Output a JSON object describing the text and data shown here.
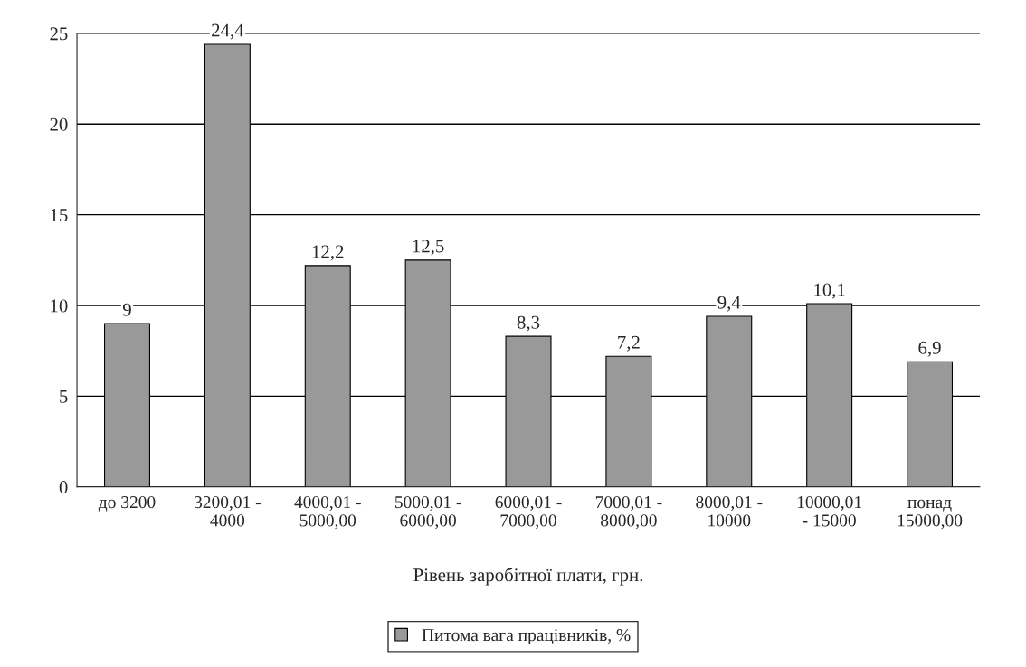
{
  "chart_data": {
    "type": "bar",
    "xlabel": "Рівень заробітної плати, грн.",
    "categories": [
      "до 3200",
      "3200,01 -\n4000",
      "4000,01 -\n5000,00",
      "5000,01 -\n6000,00",
      "6000,01 -\n7000,00",
      "7000,01 -\n8000,00",
      "8000,01 -\n10000",
      "10000,01\n- 15000",
      "понад\n15000,00"
    ],
    "series": [
      {
        "name": "Питома вага працівників, %",
        "color": "#999999",
        "values": [
          9,
          24.4,
          12.2,
          12.5,
          8.3,
          7.2,
          9.4,
          10.1,
          6.9
        ],
        "value_labels": [
          "9",
          "24,4",
          "12,2",
          "12,5",
          "8,3",
          "7,2",
          "9,4",
          "10,1",
          "6,9"
        ]
      }
    ],
    "ylim": [
      0,
      25
    ],
    "yticks": [
      0,
      5,
      10,
      15,
      20,
      25
    ],
    "grid": "y",
    "legend": "bottom"
  }
}
